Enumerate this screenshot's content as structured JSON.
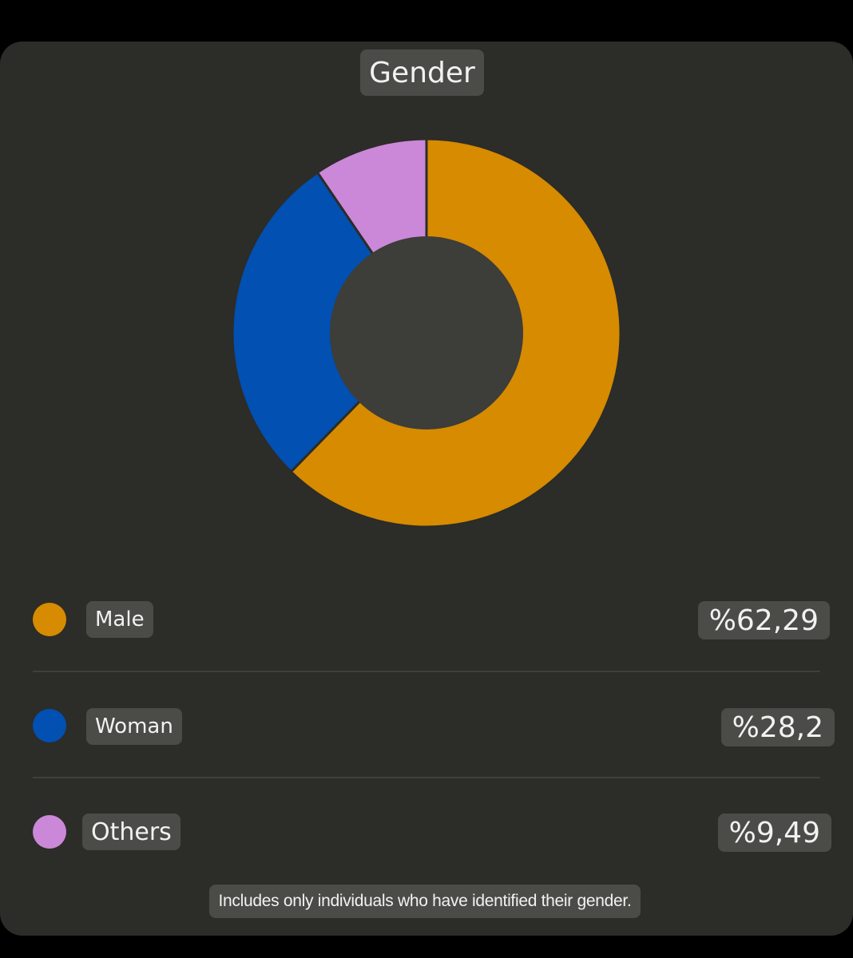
{
  "chart_data": {
    "type": "pie",
    "title": "Gender",
    "categories": [
      "Male",
      "Woman",
      "Others"
    ],
    "values": [
      62.29,
      28.2,
      9.49
    ],
    "value_labels": [
      "%62,29",
      "%28,2",
      "%9,49"
    ],
    "colors": [
      "#d68b00",
      "#0150b2",
      "#cb88d8"
    ],
    "center_color": "#3d3d39",
    "legend_placement": "bottom"
  },
  "footnote": "Includes only individuals who have identified their gender."
}
